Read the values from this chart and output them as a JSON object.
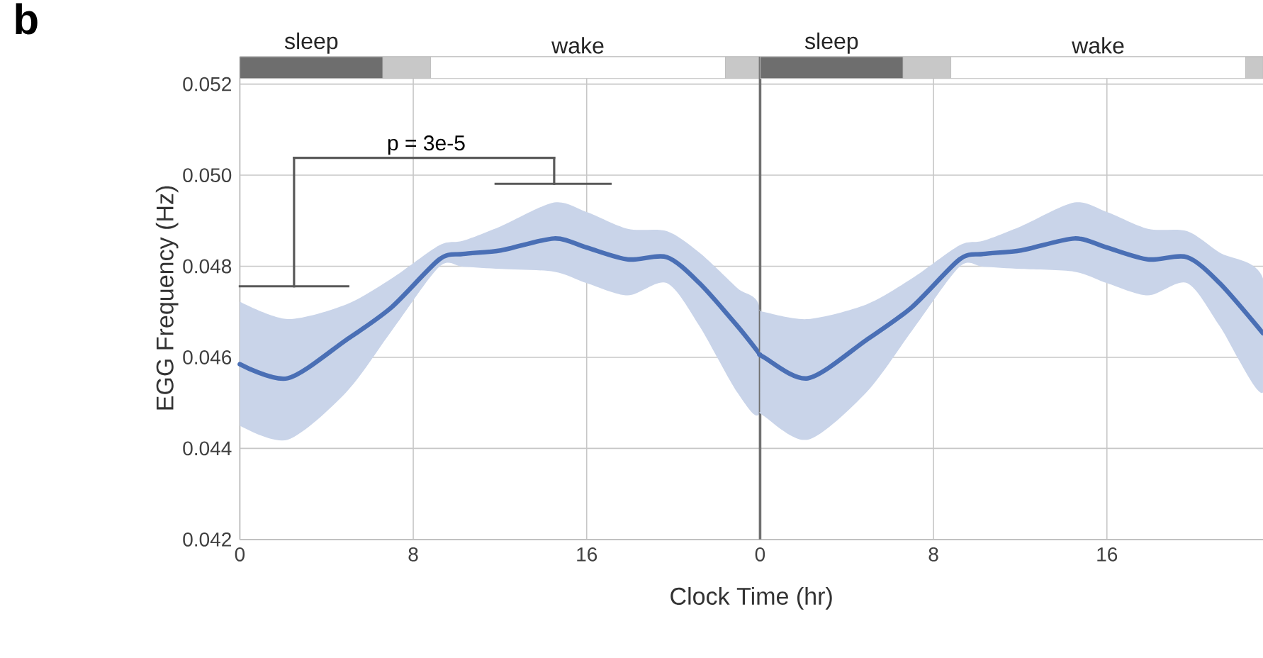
{
  "chart_data": [
    {
      "type": "line",
      "title": "b",
      "xlabel": "Clock Time (hr)",
      "ylabel": "EGG Frequency (Hz)",
      "annotations": [
        "p = 3e-5"
      ],
      "series": [
        {
          "color": "#4a6fb5",
          "x": [
            0,
            2.2,
            4.9,
            7.0,
            9.2,
            10.3,
            12.05,
            14.5,
            16.0,
            17.9,
            19.7,
            21.2,
            22.95,
            24
          ],
          "values": [
            0.04585,
            0.04554,
            0.04638,
            0.0471,
            0.04815,
            0.04827,
            0.04835,
            0.04861,
            0.04841,
            0.04815,
            0.0482,
            0.04763,
            0.04669,
            0.04606
          ],
          "lower": [
            0.0445,
            0.04419,
            0.04523,
            0.04658,
            0.04799,
            0.04799,
            0.04794,
            0.04788,
            0.04763,
            0.04736,
            0.04763,
            0.04669,
            0.04523,
            0.0448
          ],
          "upper": [
            0.04722,
            0.04684,
            0.04716,
            0.04773,
            0.04846,
            0.04856,
            0.04888,
            0.0494,
            0.04919,
            0.04882,
            0.04877,
            0.0483,
            0.04752,
            0.04705
          ]
        }
      ],
      "xlim": [
        0,
        24
      ],
      "ylim": [
        0.042,
        0.0526
      ],
      "xticks": [
        0,
        8,
        16
      ],
      "yticks": [
        0.042,
        0.044,
        0.046,
        0.048,
        {
          "value": 0.05,
          "label": "0.050"
        },
        0.052
      ],
      "grid": true,
      "marker": "none",
      "line_style": "solid",
      "bands": [
        {
          "axis": "x",
          "from": 0,
          "to": 6.6,
          "label": "sleep",
          "color": "#6e6e6e"
        },
        {
          "axis": "x",
          "from": 6.6,
          "to": 8.8,
          "color": "#c8c8c8"
        },
        {
          "axis": "x",
          "from": 8.8,
          "to": 22.4,
          "label": "wake",
          "color": "#ffffff"
        },
        {
          "axis": "x",
          "from": 22.4,
          "to": 24,
          "color": "#c8c8c8"
        }
      ]
    },
    {
      "type": "line",
      "series": [
        {
          "color": "#4a6fb5",
          "x": [
            0,
            0.15,
            2.2,
            4.9,
            7.0,
            9.2,
            10.3,
            12.05,
            14.5,
            16.0,
            17.9,
            19.7,
            21.2,
            23.2
          ],
          "values": [
            0.04606,
            0.04601,
            0.04554,
            0.04638,
            0.0471,
            0.04815,
            0.04827,
            0.04835,
            0.04861,
            0.04841,
            0.04815,
            0.0482,
            0.04763,
            0.04653
          ],
          "lower": [
            0.0448,
            0.04472,
            0.04419,
            0.04523,
            0.04658,
            0.04799,
            0.04799,
            0.04794,
            0.04788,
            0.04763,
            0.04736,
            0.04763,
            0.04669,
            0.04523
          ],
          "upper": [
            0.04705,
            0.047,
            0.04684,
            0.04716,
            0.04773,
            0.04846,
            0.04856,
            0.04888,
            0.0494,
            0.04919,
            0.04882,
            0.04877,
            0.0483,
            0.04773
          ]
        }
      ],
      "xlim": [
        0,
        23.2
      ],
      "ylim": [
        0.042,
        0.0526
      ],
      "xticks": [
        0,
        8,
        16
      ],
      "yticks": [
        0.042,
        0.044,
        0.046,
        0.048,
        0.05,
        0.052
      ],
      "tick_labels": "x",
      "grid": true,
      "marker": "none",
      "line_style": "solid",
      "bands": [
        {
          "axis": "x",
          "from": 0,
          "to": 6.6,
          "label": "sleep",
          "color": "#6e6e6e"
        },
        {
          "axis": "x",
          "from": 6.6,
          "to": 8.8,
          "color": "#c8c8c8"
        },
        {
          "axis": "x",
          "from": 8.8,
          "to": 22.4,
          "label": "wake",
          "color": "#ffffff"
        },
        {
          "axis": "x",
          "from": 22.4,
          "to": 23.2,
          "color": "#c8c8c8"
        }
      ]
    }
  ]
}
